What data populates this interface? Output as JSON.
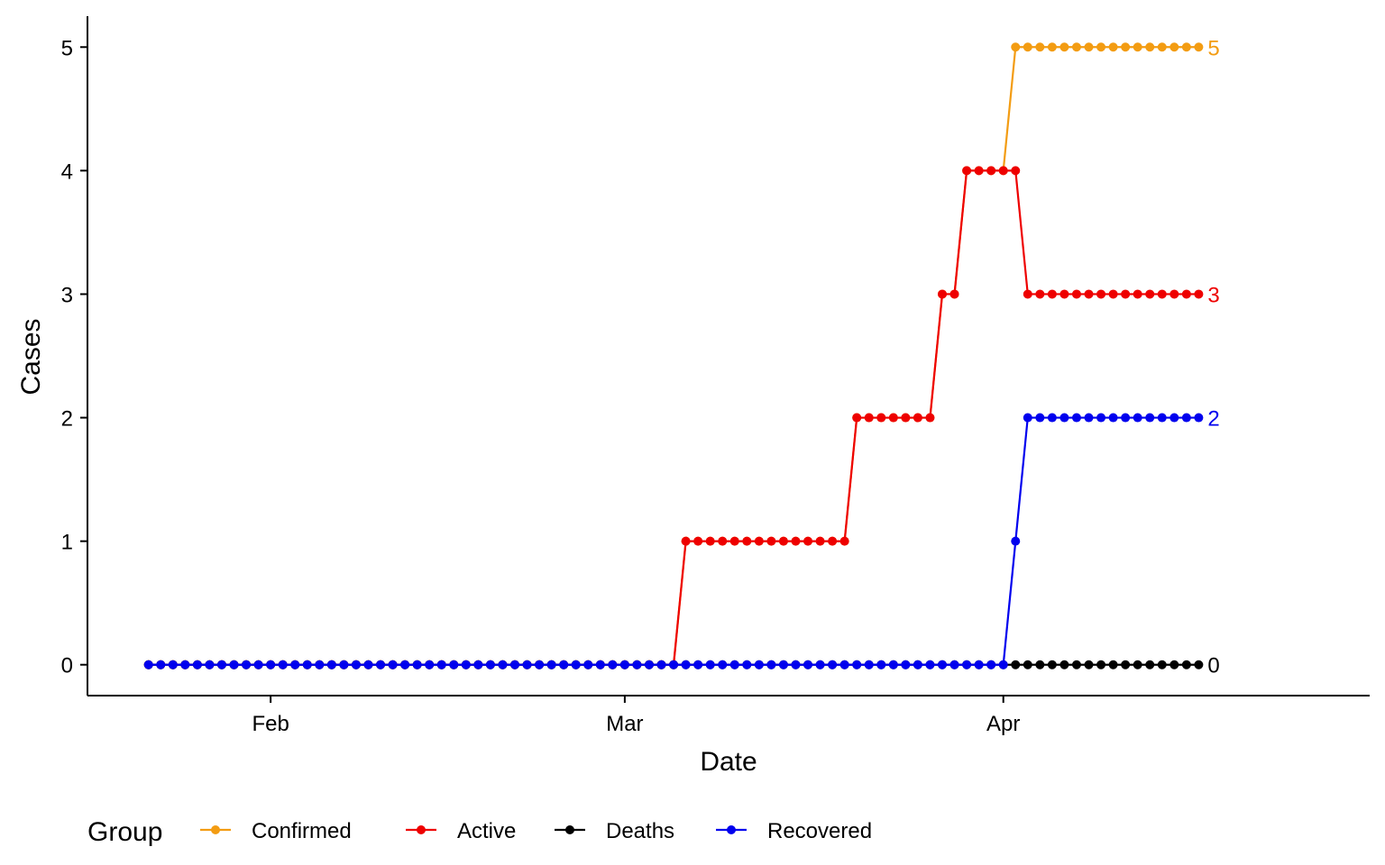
{
  "chart_data": {
    "type": "line",
    "xlabel": "Date",
    "ylabel": "Cases",
    "xlim": [
      "2020-01-17",
      "2020-05-01"
    ],
    "ylim": [
      -0.25,
      5.25
    ],
    "x_ticks": [
      {
        "date": "2020-02-01",
        "label": "Feb"
      },
      {
        "date": "2020-03-01",
        "label": "Mar"
      },
      {
        "date": "2020-04-01",
        "label": "Apr"
      }
    ],
    "y_ticks": [
      0,
      1,
      2,
      3,
      4,
      5
    ],
    "grid": false,
    "legend_position": "bottom",
    "legend_title": "Group",
    "series": [
      {
        "name": "Confirmed",
        "color": "#F39C12",
        "points": [
          [
            "2020-01-22",
            0
          ],
          [
            "2020-03-05",
            0
          ],
          [
            "2020-03-06",
            1
          ],
          [
            "2020-03-19",
            1
          ],
          [
            "2020-03-20",
            2
          ],
          [
            "2020-03-26",
            2
          ],
          [
            "2020-03-27",
            3
          ],
          [
            "2020-03-28",
            3
          ],
          [
            "2020-03-29",
            4
          ],
          [
            "2020-04-01",
            4
          ],
          [
            "2020-04-02",
            5
          ],
          [
            "2020-04-17",
            5
          ]
        ],
        "end_label": "5"
      },
      {
        "name": "Active",
        "color": "#EE0000",
        "points": [
          [
            "2020-01-22",
            0
          ],
          [
            "2020-03-05",
            0
          ],
          [
            "2020-03-06",
            1
          ],
          [
            "2020-03-19",
            1
          ],
          [
            "2020-03-20",
            2
          ],
          [
            "2020-03-26",
            2
          ],
          [
            "2020-03-27",
            3
          ],
          [
            "2020-03-28",
            3
          ],
          [
            "2020-03-29",
            4
          ],
          [
            "2020-04-02",
            4
          ],
          [
            "2020-04-03",
            3
          ],
          [
            "2020-04-17",
            3
          ]
        ],
        "end_label": "3"
      },
      {
        "name": "Deaths",
        "color": "#000000",
        "points": [
          [
            "2020-01-22",
            0
          ],
          [
            "2020-04-17",
            0
          ]
        ],
        "end_label": "0"
      },
      {
        "name": "Recovered",
        "color": "#0000EE",
        "points": [
          [
            "2020-01-22",
            0
          ],
          [
            "2020-04-01",
            0
          ],
          [
            "2020-04-02",
            1
          ],
          [
            "2020-04-03",
            2
          ],
          [
            "2020-04-17",
            2
          ]
        ],
        "end_label": "2"
      }
    ]
  }
}
